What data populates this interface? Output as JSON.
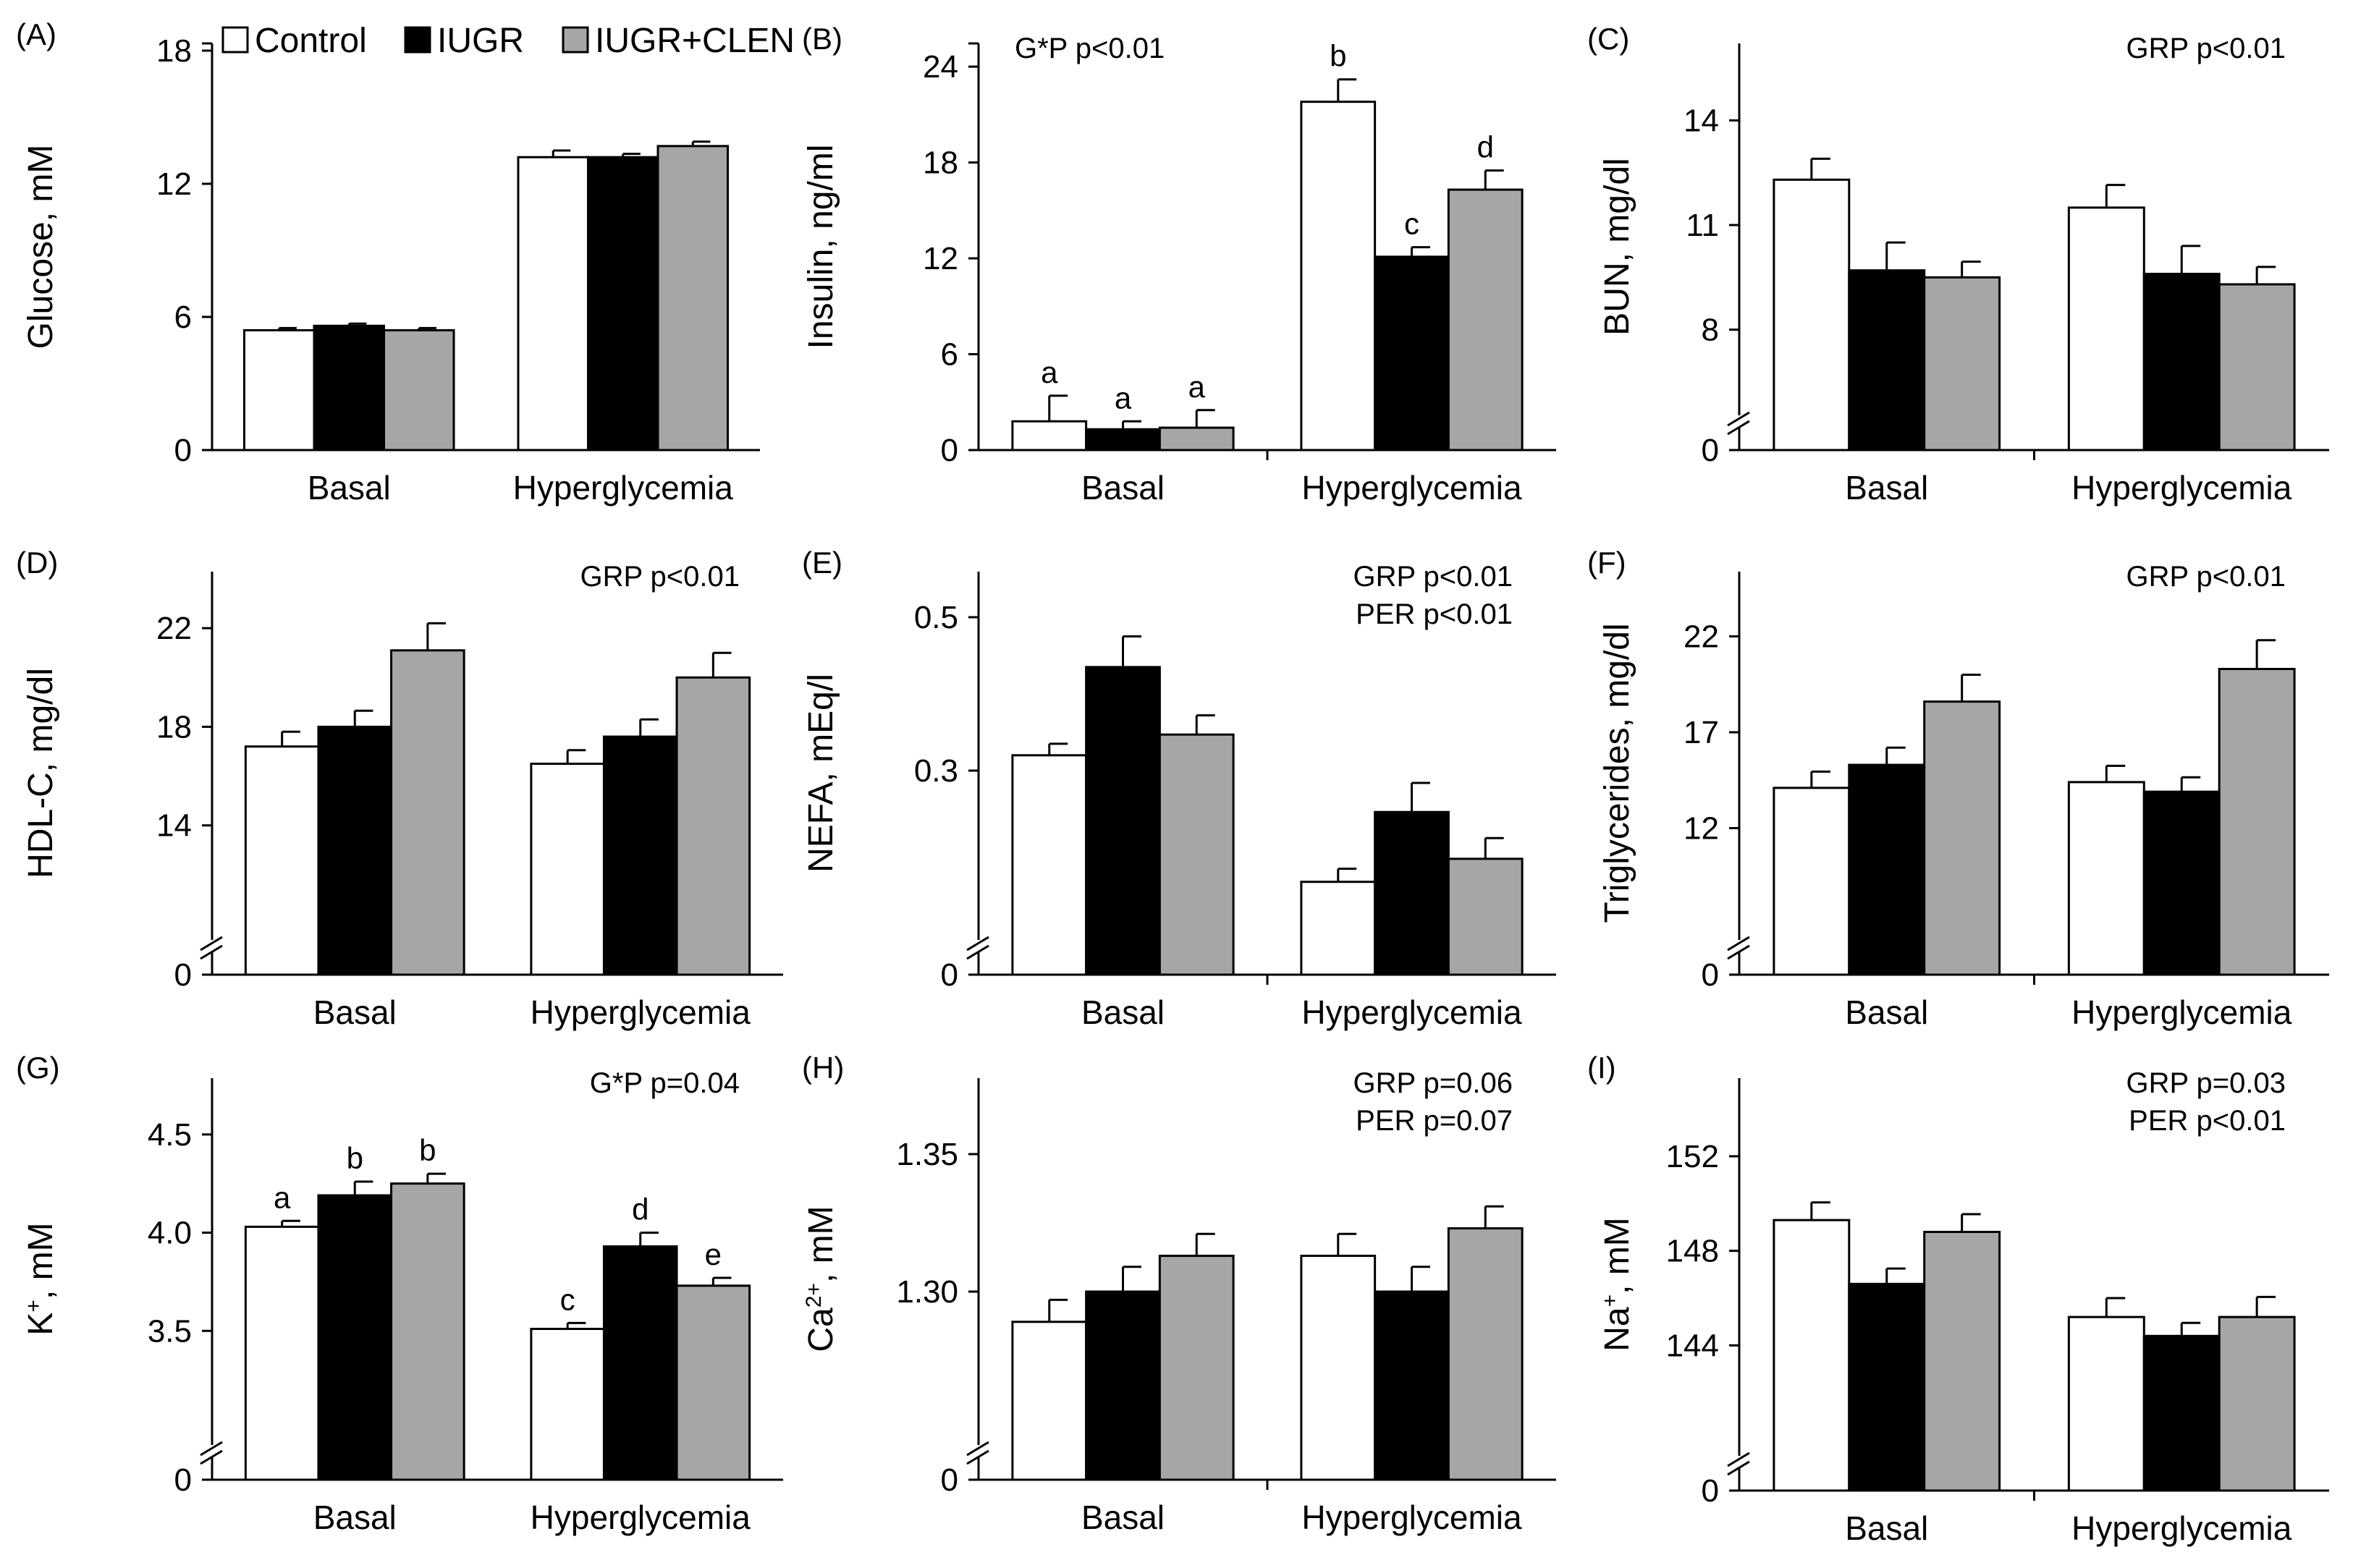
{
  "legend": {
    "items": [
      {
        "label": "Control",
        "color": "#ffffff"
      },
      {
        "label": "IUGR",
        "color": "#000000"
      },
      {
        "label": "IUGR+CLEN",
        "color": "#a6a6a6"
      }
    ]
  },
  "chart_data": [
    {
      "panel": "(A)",
      "type": "bar",
      "title": "",
      "ylabel": "Glucose, mM",
      "ylabel_sup": "",
      "ylabel_suffix": "",
      "categories": [
        "Basal",
        "Hyperglycemia"
      ],
      "ylim": [
        0,
        18
      ],
      "axis_break": false,
      "yticks": [
        {
          "v": 0,
          "label": "0"
        },
        {
          "v": 6,
          "label": "6"
        },
        {
          "v": 12,
          "label": "12"
        },
        {
          "v": 18,
          "label": "18"
        }
      ],
      "series": [
        {
          "name": "Control",
          "values": [
            5.4,
            13.2
          ],
          "errors": [
            0.1,
            0.3
          ]
        },
        {
          "name": "IUGR",
          "values": [
            5.6,
            13.2
          ],
          "errors": [
            0.1,
            0.15
          ]
        },
        {
          "name": "IUGR+CLEN",
          "values": [
            5.4,
            13.7
          ],
          "errors": [
            0.1,
            0.2
          ]
        }
      ],
      "letters": [],
      "annotations": [],
      "grid": false
    },
    {
      "panel": "(B)",
      "type": "bar",
      "ylabel": "Insulin, ng/ml",
      "ylabel_sup": "",
      "ylabel_suffix": "",
      "categories": [
        "Basal",
        "Hyperglycemia"
      ],
      "ylim": [
        0,
        25
      ],
      "axis_break": false,
      "yticks": [
        {
          "v": 0,
          "label": "0"
        },
        {
          "v": 6,
          "label": "6"
        },
        {
          "v": 12,
          "label": "12"
        },
        {
          "v": 18,
          "label": "18"
        },
        {
          "v": 24,
          "label": "24"
        }
      ],
      "series": [
        {
          "name": "Control",
          "values": [
            1.8,
            21.8
          ],
          "errors": [
            1.6,
            1.4
          ]
        },
        {
          "name": "IUGR",
          "values": [
            1.3,
            12.1
          ],
          "errors": [
            0.5,
            0.6
          ]
        },
        {
          "name": "IUGR+CLEN",
          "values": [
            1.4,
            16.3
          ],
          "errors": [
            1.1,
            1.2
          ]
        }
      ],
      "letters": [
        [
          "a",
          "b"
        ],
        [
          "a",
          "c"
        ],
        [
          "a",
          "d"
        ]
      ],
      "annotations": [
        "G*P p<0.01"
      ],
      "annotation_pos": "top-left",
      "grid": false
    },
    {
      "panel": "(C)",
      "type": "bar",
      "ylabel": "BUN, mg/dl",
      "ylabel_sup": "",
      "ylabel_suffix": "",
      "categories": [
        "Basal",
        "Hyperglycemia"
      ],
      "ylim": [
        6,
        16
      ],
      "axis_break": true,
      "yticks": [
        {
          "v": 8,
          "label": "8"
        },
        {
          "v": 11,
          "label": "11"
        },
        {
          "v": 14,
          "label": "14"
        }
      ],
      "zero_label": "0",
      "series": [
        {
          "name": "Control",
          "values": [
            12.3,
            11.5
          ],
          "errors": [
            0.6,
            0.65
          ]
        },
        {
          "name": "IUGR",
          "values": [
            9.7,
            9.6
          ],
          "errors": [
            0.8,
            0.8
          ]
        },
        {
          "name": "IUGR+CLEN",
          "values": [
            9.5,
            9.3
          ],
          "errors": [
            0.45,
            0.5
          ]
        }
      ],
      "letters": [],
      "annotations": [
        "GRP p<0.01"
      ],
      "annotation_pos": "top-right",
      "grid": false
    },
    {
      "panel": "(D)",
      "type": "bar",
      "ylabel": "HDL-C, mg/dl",
      "ylabel_sup": "",
      "ylabel_suffix": "",
      "categories": [
        "Basal",
        "Hyperglycemia"
      ],
      "ylim": [
        10,
        24
      ],
      "axis_break": true,
      "yticks": [
        {
          "v": 14,
          "label": "14"
        },
        {
          "v": 18,
          "label": "18"
        },
        {
          "v": 22,
          "label": "22"
        }
      ],
      "zero_label": "0",
      "series": [
        {
          "name": "Control",
          "values": [
            17.2,
            16.5
          ],
          "errors": [
            0.6,
            0.55
          ]
        },
        {
          "name": "IUGR",
          "values": [
            18.0,
            17.6
          ],
          "errors": [
            0.65,
            0.7
          ]
        },
        {
          "name": "IUGR+CLEN",
          "values": [
            21.1,
            20.0
          ],
          "errors": [
            1.1,
            1.0
          ]
        }
      ],
      "letters": [],
      "annotations": [
        "GRP p<0.01"
      ],
      "annotation_pos": "top-right",
      "grid": false
    },
    {
      "panel": "(E)",
      "type": "bar",
      "ylabel": "NEFA, mEq/l",
      "ylabel_sup": "",
      "ylabel_suffix": "",
      "categories": [
        "Basal",
        "Hyperglycemia"
      ],
      "ylim": [
        0.1,
        0.55
      ],
      "axis_break": true,
      "yticks": [
        {
          "v": 0.3,
          "label": "0.3"
        },
        {
          "v": 0.5,
          "label": "0.5"
        }
      ],
      "zero_label": "0",
      "series": [
        {
          "name": "Control",
          "values": [
            0.32,
            0.155
          ],
          "errors": [
            0.015,
            0.017
          ]
        },
        {
          "name": "IUGR",
          "values": [
            0.435,
            0.246
          ],
          "errors": [
            0.04,
            0.038
          ]
        },
        {
          "name": "IUGR+CLEN",
          "values": [
            0.347,
            0.185
          ],
          "errors": [
            0.025,
            0.027
          ]
        }
      ],
      "letters": [],
      "annotations": [
        "GRP p<0.01",
        "PER p<0.01"
      ],
      "annotation_pos": "top-right",
      "grid": false
    },
    {
      "panel": "(F)",
      "type": "bar",
      "ylabel": "Triglycerides, mg/dl",
      "ylabel_sup": "",
      "ylabel_suffix": "",
      "categories": [
        "Basal",
        "Hyperglycemia"
      ],
      "ylim": [
        7,
        25
      ],
      "axis_break": true,
      "yticks": [
        {
          "v": 12,
          "label": "12"
        },
        {
          "v": 17,
          "label": "17"
        },
        {
          "v": 22,
          "label": "22"
        }
      ],
      "zero_label": "0",
      "series": [
        {
          "name": "Control",
          "values": [
            14.1,
            14.4
          ],
          "errors": [
            0.85,
            0.85
          ]
        },
        {
          "name": "IUGR",
          "values": [
            15.3,
            13.9
          ],
          "errors": [
            0.9,
            0.75
          ]
        },
        {
          "name": "IUGR+CLEN",
          "values": [
            18.6,
            20.3
          ],
          "errors": [
            1.4,
            1.5
          ]
        }
      ],
      "letters": [],
      "annotations": [
        "GRP p<0.01"
      ],
      "annotation_pos": "top-right",
      "grid": false
    },
    {
      "panel": "(G)",
      "type": "bar",
      "ylabel": "K",
      "ylabel_sup": "+",
      "ylabel_suffix": ", mM",
      "categories": [
        "Basal",
        "Hyperglycemia"
      ],
      "ylim": [
        3.0,
        4.75
      ],
      "axis_break": true,
      "yticks": [
        {
          "v": 3.5,
          "label": "3.5"
        },
        {
          "v": 4.0,
          "label": "4.0"
        },
        {
          "v": 4.5,
          "label": "4.5"
        }
      ],
      "zero_label": "0",
      "series": [
        {
          "name": "Control",
          "values": [
            4.03,
            3.51
          ],
          "errors": [
            0.03,
            0.03
          ]
        },
        {
          "name": "IUGR",
          "values": [
            4.19,
            3.93
          ],
          "errors": [
            0.07,
            0.07
          ]
        },
        {
          "name": "IUGR+CLEN",
          "values": [
            4.25,
            3.73
          ],
          "errors": [
            0.05,
            0.04
          ]
        }
      ],
      "letters": [
        [
          "a",
          "c"
        ],
        [
          "b",
          "d"
        ],
        [
          "b",
          "e"
        ]
      ],
      "annotations": [
        "G*P p=0.04"
      ],
      "annotation_pos": "top-right",
      "grid": false
    },
    {
      "panel": "(H)",
      "type": "bar",
      "ylabel": "Ca",
      "ylabel_sup": "2+",
      "ylabel_suffix": ", mM",
      "categories": [
        "Basal",
        "Hyperglycemia"
      ],
      "ylim": [
        1.25,
        1.375
      ],
      "axis_break": true,
      "yticks": [
        {
          "v": 1.3,
          "label": "1.30"
        },
        {
          "v": 1.35,
          "label": "1.35"
        }
      ],
      "zero_label": "0",
      "series": [
        {
          "name": "Control",
          "values": [
            1.289,
            1.313
          ],
          "errors": [
            0.008,
            0.008
          ]
        },
        {
          "name": "IUGR",
          "values": [
            1.3,
            1.3
          ],
          "errors": [
            0.009,
            0.009
          ]
        },
        {
          "name": "IUGR+CLEN",
          "values": [
            1.313,
            1.323
          ],
          "errors": [
            0.008,
            0.008
          ]
        }
      ],
      "letters": [],
      "annotations": [
        "GRP p=0.06",
        "PER p=0.07"
      ],
      "annotation_pos": "top-right",
      "grid": false
    },
    {
      "panel": "(I)",
      "type": "bar",
      "ylabel": "Na",
      "ylabel_sup": "+",
      "ylabel_suffix": ", mM",
      "categories": [
        "Basal",
        "Hyperglycemia"
      ],
      "ylim": [
        140,
        155
      ],
      "axis_break": true,
      "yticks": [
        {
          "v": 144,
          "label": "144"
        },
        {
          "v": 148,
          "label": "148"
        },
        {
          "v": 152,
          "label": "152"
        }
      ],
      "zero_label": "0",
      "series": [
        {
          "name": "Control",
          "values": [
            149.3,
            145.2
          ],
          "errors": [
            0.75,
            0.8
          ]
        },
        {
          "name": "IUGR",
          "values": [
            146.6,
            144.4
          ],
          "errors": [
            0.65,
            0.55
          ]
        },
        {
          "name": "IUGR+CLEN",
          "values": [
            148.8,
            145.2
          ],
          "errors": [
            0.75,
            0.85
          ]
        }
      ],
      "letters": [],
      "annotations": [
        "GRP p=0.03",
        "PER p<0.01"
      ],
      "annotation_pos": "top-right",
      "grid": false
    }
  ]
}
